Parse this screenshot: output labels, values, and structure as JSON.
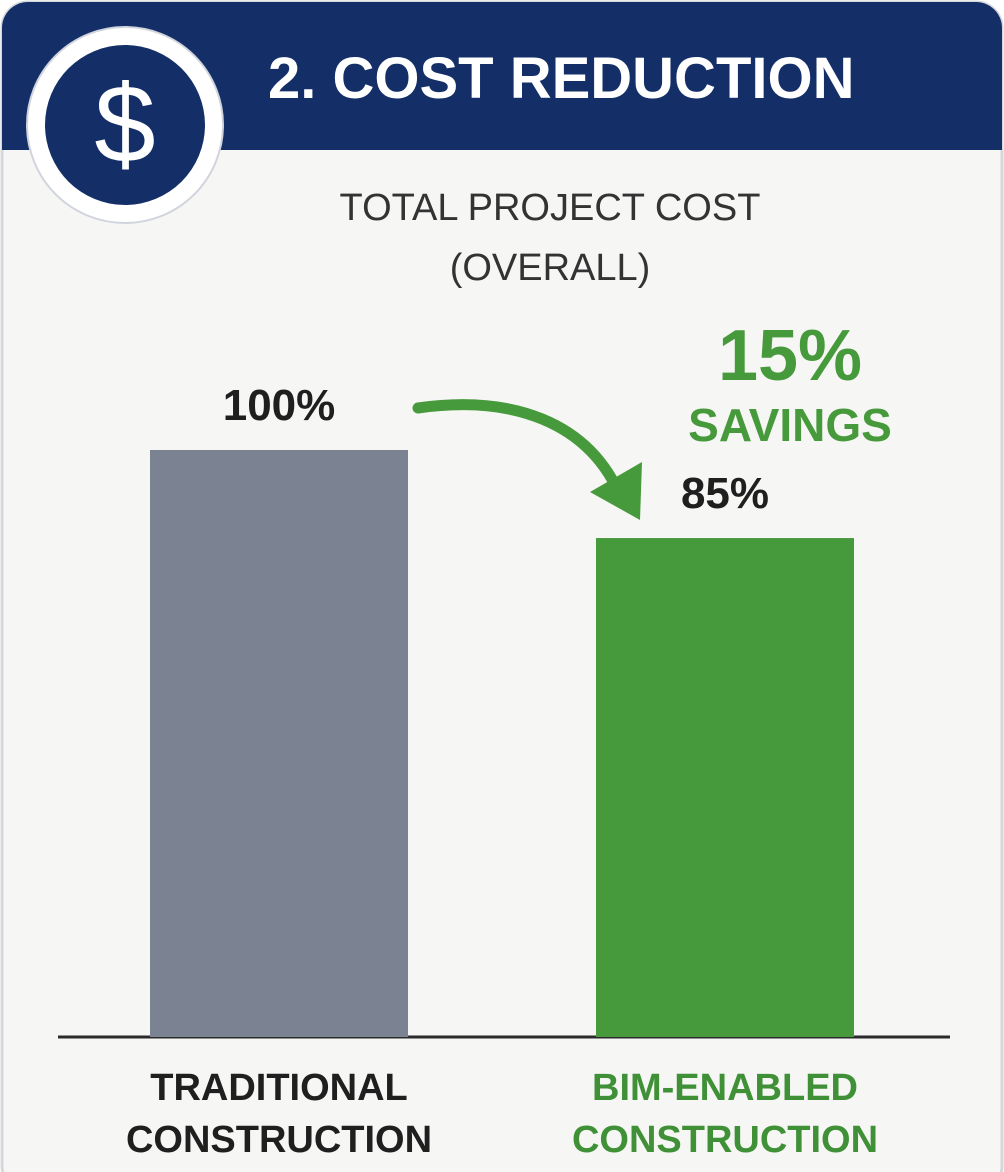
{
  "chart_data": {
    "type": "bar",
    "icon": "$",
    "title": "2. COST REDUCTION",
    "subtitle": "TOTAL PROJECT COST (OVERALL)",
    "categories": [
      "TRADITIONAL CONSTRUCTION",
      "BIM-ENABLED CONSTRUCTION"
    ],
    "values": [
      100,
      85
    ],
    "value_labels": [
      "100%",
      "85%"
    ],
    "colors": [
      "#7b8291",
      "#479a3b"
    ],
    "category_colors": [
      "#1f1f1f",
      "#3f9036"
    ],
    "annotation": {
      "value": 15,
      "label": "15%",
      "text": "SAVINGS",
      "color": "#479a3b"
    }
  }
}
